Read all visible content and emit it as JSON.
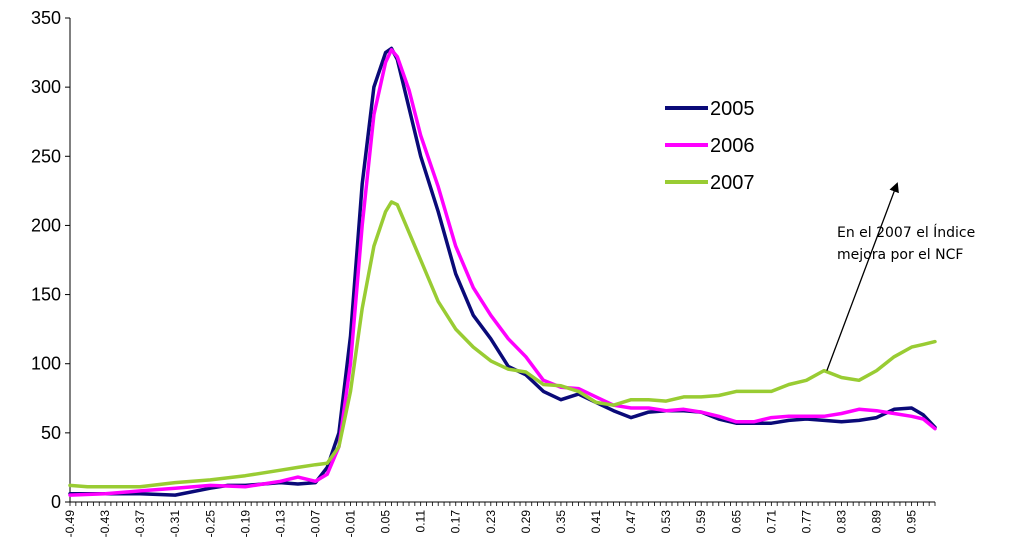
{
  "chart_data": {
    "type": "line",
    "title": "",
    "xlabel": "",
    "ylabel": "",
    "ylim": [
      0,
      350
    ],
    "yticks": [
      0,
      50,
      100,
      150,
      200,
      250,
      300,
      350
    ],
    "xlim": [
      -0.49,
      0.99
    ],
    "xtick_labels": [
      "-0.49",
      "-0.43",
      "-0.37",
      "-0.31",
      "-0.25",
      "-0.19",
      "-0.13",
      "-0.07",
      "-0.01",
      "0.05",
      "0.11",
      "0.17",
      "0.23",
      "0.29",
      "0.35",
      "0.41",
      "0.47",
      "0.53",
      "0.59",
      "0.65",
      "0.71",
      "0.77",
      "0.83",
      "0.89",
      "0.95"
    ],
    "grid": false,
    "legend_position": "upper-right",
    "series": [
      {
        "name": "2005",
        "color": "#0a0a78",
        "points": [
          [
            -0.49,
            6
          ],
          [
            -0.43,
            6
          ],
          [
            -0.37,
            6
          ],
          [
            -0.31,
            5
          ],
          [
            -0.25,
            10
          ],
          [
            -0.22,
            12
          ],
          [
            -0.19,
            12
          ],
          [
            -0.13,
            14
          ],
          [
            -0.1,
            13
          ],
          [
            -0.07,
            14
          ],
          [
            -0.05,
            25
          ],
          [
            -0.03,
            50
          ],
          [
            -0.01,
            120
          ],
          [
            0.01,
            230
          ],
          [
            0.03,
            300
          ],
          [
            0.05,
            325
          ],
          [
            0.06,
            328
          ],
          [
            0.07,
            320
          ],
          [
            0.09,
            285
          ],
          [
            0.11,
            250
          ],
          [
            0.14,
            210
          ],
          [
            0.17,
            165
          ],
          [
            0.2,
            135
          ],
          [
            0.23,
            118
          ],
          [
            0.26,
            98
          ],
          [
            0.29,
            92
          ],
          [
            0.32,
            80
          ],
          [
            0.35,
            74
          ],
          [
            0.38,
            78
          ],
          [
            0.41,
            72
          ],
          [
            0.44,
            66
          ],
          [
            0.47,
            61
          ],
          [
            0.5,
            65
          ],
          [
            0.53,
            66
          ],
          [
            0.56,
            66
          ],
          [
            0.59,
            65
          ],
          [
            0.62,
            60
          ],
          [
            0.65,
            57
          ],
          [
            0.68,
            57
          ],
          [
            0.71,
            57
          ],
          [
            0.74,
            59
          ],
          [
            0.77,
            60
          ],
          [
            0.8,
            59
          ],
          [
            0.83,
            58
          ],
          [
            0.86,
            59
          ],
          [
            0.89,
            61
          ],
          [
            0.92,
            67
          ],
          [
            0.95,
            68
          ],
          [
            0.97,
            63
          ],
          [
            0.99,
            54
          ]
        ]
      },
      {
        "name": "2006",
        "color": "#ff00ff",
        "points": [
          [
            -0.49,
            5
          ],
          [
            -0.43,
            6
          ],
          [
            -0.37,
            8
          ],
          [
            -0.31,
            10
          ],
          [
            -0.25,
            12
          ],
          [
            -0.19,
            11
          ],
          [
            -0.13,
            15
          ],
          [
            -0.1,
            18
          ],
          [
            -0.07,
            15
          ],
          [
            -0.05,
            20
          ],
          [
            -0.03,
            40
          ],
          [
            -0.01,
            100
          ],
          [
            0.01,
            200
          ],
          [
            0.03,
            280
          ],
          [
            0.05,
            318
          ],
          [
            0.06,
            327
          ],
          [
            0.07,
            322
          ],
          [
            0.09,
            298
          ],
          [
            0.11,
            265
          ],
          [
            0.14,
            228
          ],
          [
            0.17,
            185
          ],
          [
            0.2,
            155
          ],
          [
            0.23,
            135
          ],
          [
            0.26,
            118
          ],
          [
            0.29,
            105
          ],
          [
            0.32,
            88
          ],
          [
            0.35,
            83
          ],
          [
            0.38,
            82
          ],
          [
            0.41,
            76
          ],
          [
            0.44,
            70
          ],
          [
            0.47,
            68
          ],
          [
            0.5,
            68
          ],
          [
            0.53,
            66
          ],
          [
            0.56,
            67
          ],
          [
            0.59,
            65
          ],
          [
            0.62,
            62
          ],
          [
            0.65,
            58
          ],
          [
            0.68,
            58
          ],
          [
            0.71,
            61
          ],
          [
            0.74,
            62
          ],
          [
            0.77,
            62
          ],
          [
            0.8,
            62
          ],
          [
            0.83,
            64
          ],
          [
            0.86,
            67
          ],
          [
            0.89,
            66
          ],
          [
            0.92,
            64
          ],
          [
            0.95,
            62
          ],
          [
            0.97,
            60
          ],
          [
            0.99,
            53
          ]
        ]
      },
      {
        "name": "2007",
        "color": "#99cc33",
        "points": [
          [
            -0.49,
            12
          ],
          [
            -0.46,
            11
          ],
          [
            -0.43,
            11
          ],
          [
            -0.37,
            11
          ],
          [
            -0.31,
            14
          ],
          [
            -0.25,
            16
          ],
          [
            -0.19,
            19
          ],
          [
            -0.13,
            23
          ],
          [
            -0.1,
            25
          ],
          [
            -0.07,
            27
          ],
          [
            -0.05,
            28
          ],
          [
            -0.03,
            40
          ],
          [
            -0.01,
            80
          ],
          [
            0.01,
            140
          ],
          [
            0.03,
            185
          ],
          [
            0.05,
            210
          ],
          [
            0.06,
            217
          ],
          [
            0.07,
            215
          ],
          [
            0.09,
            195
          ],
          [
            0.11,
            175
          ],
          [
            0.14,
            145
          ],
          [
            0.17,
            125
          ],
          [
            0.2,
            112
          ],
          [
            0.23,
            102
          ],
          [
            0.26,
            96
          ],
          [
            0.29,
            94
          ],
          [
            0.32,
            85
          ],
          [
            0.35,
            84
          ],
          [
            0.38,
            80
          ],
          [
            0.41,
            72
          ],
          [
            0.44,
            70
          ],
          [
            0.47,
            74
          ],
          [
            0.5,
            74
          ],
          [
            0.53,
            73
          ],
          [
            0.56,
            76
          ],
          [
            0.59,
            76
          ],
          [
            0.62,
            77
          ],
          [
            0.65,
            80
          ],
          [
            0.68,
            80
          ],
          [
            0.71,
            80
          ],
          [
            0.74,
            85
          ],
          [
            0.77,
            88
          ],
          [
            0.8,
            95
          ],
          [
            0.83,
            90
          ],
          [
            0.86,
            88
          ],
          [
            0.89,
            95
          ],
          [
            0.92,
            105
          ],
          [
            0.95,
            112
          ],
          [
            0.97,
            114
          ],
          [
            0.99,
            116
          ]
        ]
      }
    ],
    "annotations": [
      {
        "text_lines": [
          "En el 2007 el Índice",
          "mejora por el NCF"
        ],
        "arrow_from": [
          0.805,
          95
        ],
        "arrow_to": [
          0.925,
          230
        ]
      }
    ]
  }
}
